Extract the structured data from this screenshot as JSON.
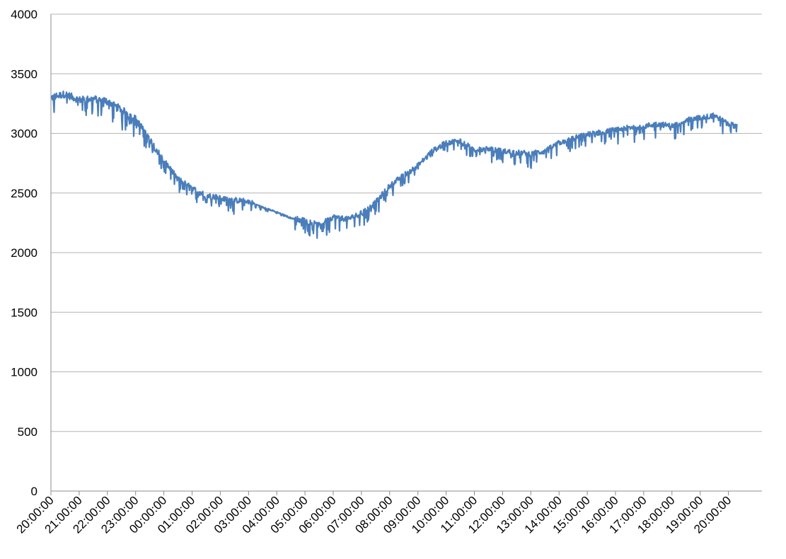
{
  "chart_data": {
    "type": "line",
    "title": "",
    "xlabel": "",
    "ylabel": "",
    "ylim": [
      0,
      4000
    ],
    "y_ticks": [
      "0",
      "500",
      "1000",
      "1500",
      "2000",
      "2500",
      "3000",
      "3500",
      "4000"
    ],
    "x_tick_labels": [
      "20:00:00",
      "21:00:00",
      "22:00:00",
      "23:00:00",
      "00:00:00",
      "01:00:00",
      "02:00:00",
      "03:00:00",
      "04:00:00",
      "05:00:00",
      "06:00:00",
      "07:00:00",
      "08:00:00",
      "09:00:00",
      "10:00:00",
      "11:00:00",
      "12:00:00",
      "13:00:00",
      "14:00:00",
      "15:00:00",
      "16:00:00",
      "17:00:00",
      "18:00:00",
      "19:00:00",
      "20:00:00"
    ],
    "x_hours_since_start": [
      0,
      0.5,
      1,
      1.5,
      2,
      2.5,
      3,
      3.5,
      4,
      4.5,
      5,
      5.5,
      6,
      6.5,
      7,
      7.5,
      8,
      8.5,
      9,
      9.5,
      10,
      10.5,
      11,
      11.5,
      12,
      12.5,
      13,
      13.5,
      14,
      14.5,
      15,
      15.5,
      16,
      16.5,
      17,
      17.5,
      18,
      18.5,
      19,
      19.5,
      20,
      20.5,
      21,
      21.5,
      22,
      22.5,
      23,
      23.5,
      24,
      24.3
    ],
    "grid": true,
    "legend": "none",
    "series": [
      {
        "name": "",
        "color": "#4a7ebb",
        "values": [
          3300,
          3330,
          3280,
          3290,
          3270,
          3200,
          3120,
          2950,
          2770,
          2620,
          2540,
          2480,
          2460,
          2440,
          2430,
          2380,
          2340,
          2290,
          2270,
          2230,
          2300,
          2280,
          2330,
          2420,
          2560,
          2650,
          2730,
          2850,
          2920,
          2940,
          2860,
          2870,
          2850,
          2840,
          2830,
          2850,
          2920,
          2960,
          2990,
          3010,
          3030,
          3050,
          3060,
          3080,
          3060,
          3110,
          3130,
          3150,
          3080,
          3060
        ]
      }
    ]
  }
}
